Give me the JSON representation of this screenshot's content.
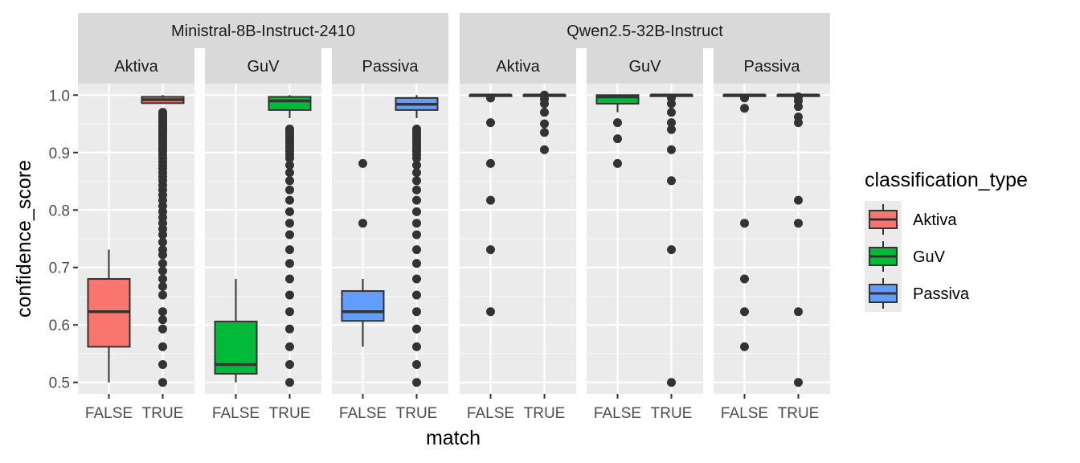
{
  "chart_data": {
    "type": "boxplot",
    "xlabel": "match",
    "ylabel": "confidence_score",
    "ylim": [
      0.48,
      1.02
    ],
    "yticks": [
      0.5,
      0.6,
      0.7,
      0.8,
      0.9,
      1.0
    ],
    "ytick_labels": [
      "0.5",
      "0.6",
      "0.7",
      "0.8",
      "0.9",
      "1.0"
    ],
    "x_categories": [
      "FALSE",
      "TRUE"
    ],
    "legend": {
      "title": "classification_type",
      "entries": [
        {
          "label": "Aktiva",
          "color": "#F8766D"
        },
        {
          "label": "GuV",
          "color": "#00BA38"
        },
        {
          "label": "Passiva",
          "color": "#619CFF"
        }
      ]
    },
    "models": [
      {
        "name": "Ministral-8B-Instruct-2410",
        "panels": [
          {
            "label": "Aktiva",
            "boxes": [
              {
                "x": "FALSE",
                "min": 0.5,
                "q1": 0.562,
                "median": 0.623,
                "q3": 0.68,
                "max": 0.731,
                "outliers": []
              },
              {
                "x": "TRUE",
                "min": 0.985,
                "q1": 0.986,
                "median": 0.992,
                "q3": 0.997,
                "max": 1.0,
                "outliers": [
                  0.5,
                  0.531,
                  0.562,
                  0.593,
                  0.609,
                  0.623,
                  0.652,
                  0.667,
                  0.68,
                  0.694,
                  0.707,
                  0.722,
                  0.731,
                  0.744,
                  0.757,
                  0.767,
                  0.777,
                  0.787,
                  0.797,
                  0.807,
                  0.817,
                  0.826,
                  0.835,
                  0.843,
                  0.851,
                  0.858,
                  0.865,
                  0.872,
                  0.878,
                  0.884,
                  0.89,
                  0.896,
                  0.902,
                  0.907,
                  0.912,
                  0.917,
                  0.922,
                  0.927,
                  0.932,
                  0.937,
                  0.941,
                  0.945,
                  0.949,
                  0.953,
                  0.957,
                  0.961,
                  0.964,
                  0.967,
                  0.97
                ]
              }
            ]
          },
          {
            "label": "GuV",
            "boxes": [
              {
                "x": "FALSE",
                "min": 0.5,
                "q1": 0.515,
                "median": 0.531,
                "q3": 0.606,
                "max": 0.68,
                "outliers": []
              },
              {
                "x": "TRUE",
                "min": 0.96,
                "q1": 0.974,
                "median": 0.99,
                "q3": 0.997,
                "max": 1.0,
                "outliers": [
                  0.5,
                  0.531,
                  0.562,
                  0.593,
                  0.623,
                  0.652,
                  0.68,
                  0.707,
                  0.731,
                  0.757,
                  0.777,
                  0.797,
                  0.817,
                  0.835,
                  0.851,
                  0.865,
                  0.878,
                  0.89,
                  0.896,
                  0.902,
                  0.907,
                  0.912,
                  0.917,
                  0.922,
                  0.927,
                  0.932,
                  0.937,
                  0.941
                ]
              }
            ]
          },
          {
            "label": "Passiva",
            "boxes": [
              {
                "x": "FALSE",
                "min": 0.562,
                "q1": 0.607,
                "median": 0.623,
                "q3": 0.659,
                "max": 0.68,
                "outliers": [
                  0.777,
                  0.881
                ]
              },
              {
                "x": "TRUE",
                "min": 0.96,
                "q1": 0.974,
                "median": 0.984,
                "q3": 0.995,
                "max": 1.0,
                "outliers": [
                  0.5,
                  0.531,
                  0.562,
                  0.593,
                  0.623,
                  0.652,
                  0.68,
                  0.707,
                  0.731,
                  0.757,
                  0.777,
                  0.797,
                  0.817,
                  0.835,
                  0.851,
                  0.865,
                  0.878,
                  0.89,
                  0.896,
                  0.902,
                  0.907,
                  0.912,
                  0.917,
                  0.922,
                  0.927,
                  0.932,
                  0.937,
                  0.941
                ]
              }
            ]
          }
        ]
      },
      {
        "name": "Qwen2.5-32B-Instruct",
        "panels": [
          {
            "label": "Aktiva",
            "boxes": [
              {
                "x": "FALSE",
                "min": 0.997,
                "q1": 0.998,
                "median": 1.0,
                "q3": 1.0,
                "max": 1.0,
                "outliers": [
                  0.623,
                  0.731,
                  0.817,
                  0.881,
                  0.952,
                  0.995
                ]
              },
              {
                "x": "TRUE",
                "min": 0.997,
                "q1": 0.998,
                "median": 1.0,
                "q3": 1.0,
                "max": 1.0,
                "outliers": [
                  0.905,
                  0.935,
                  0.95,
                  0.97,
                  0.985,
                  0.993,
                  1.0
                ]
              }
            ]
          },
          {
            "label": "GuV",
            "boxes": [
              {
                "x": "FALSE",
                "min": 0.97,
                "q1": 0.985,
                "median": 0.997,
                "q3": 1.0,
                "max": 1.0,
                "outliers": [
                  0.881,
                  0.924,
                  0.952
                ]
              },
              {
                "x": "TRUE",
                "min": 0.997,
                "q1": 0.998,
                "median": 1.0,
                "q3": 1.0,
                "max": 1.0,
                "outliers": [
                  0.5,
                  0.731,
                  0.851,
                  0.905,
                  0.94,
                  0.952,
                  0.97,
                  0.985,
                  0.995
                ]
              }
            ]
          },
          {
            "label": "Passiva",
            "boxes": [
              {
                "x": "FALSE",
                "min": 0.997,
                "q1": 0.998,
                "median": 1.0,
                "q3": 1.0,
                "max": 1.0,
                "outliers": [
                  0.562,
                  0.623,
                  0.68,
                  0.777,
                  0.977,
                  0.995
                ]
              },
              {
                "x": "TRUE",
                "min": 0.997,
                "q1": 0.998,
                "median": 1.0,
                "q3": 1.0,
                "max": 1.0,
                "outliers": [
                  0.5,
                  0.623,
                  0.777,
                  0.817,
                  0.952,
                  0.962,
                  0.98,
                  0.99,
                  0.997
                ]
              }
            ]
          }
        ]
      }
    ]
  }
}
